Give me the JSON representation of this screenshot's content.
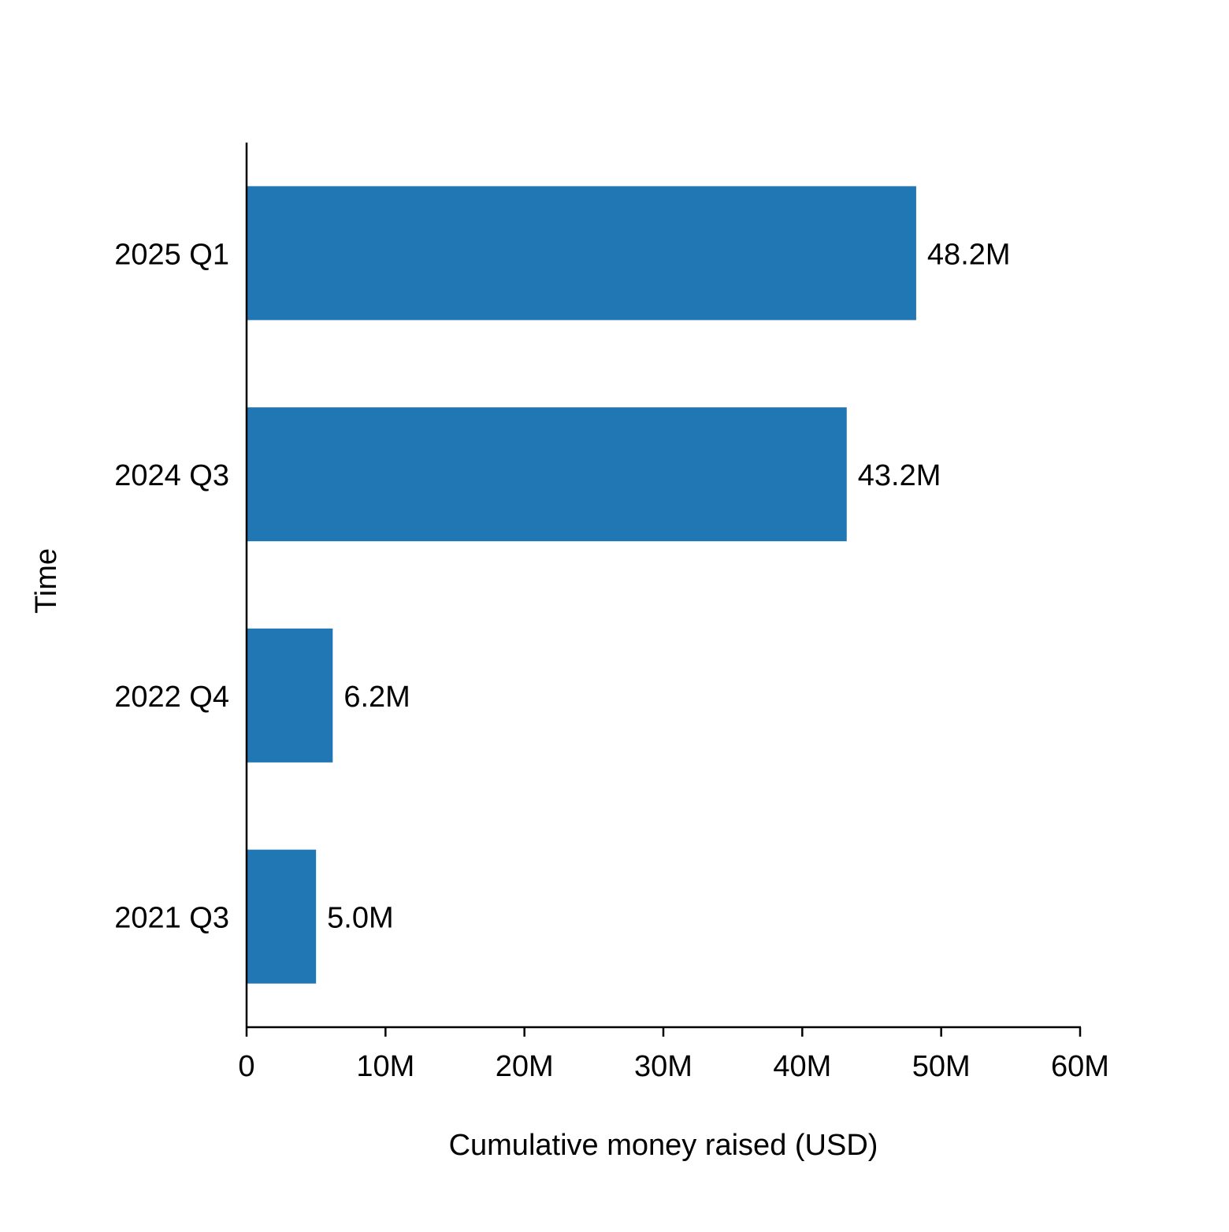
{
  "chart_data": {
    "type": "bar",
    "orientation": "horizontal",
    "categories": [
      "2025 Q1",
      "2024 Q3",
      "2022 Q4",
      "2021 Q3"
    ],
    "values": [
      48.2,
      43.2,
      6.2,
      5.0
    ],
    "value_labels": [
      "48.2M",
      "43.2M",
      "6.2M",
      "5.0M"
    ],
    "xlabel": "Cumulative money raised (USD)",
    "ylabel": "Time",
    "xlim": [
      0,
      60
    ],
    "x_ticks": [
      0,
      10,
      20,
      30,
      40,
      50,
      60
    ],
    "x_tick_labels": [
      "0",
      "10M",
      "20M",
      "30M",
      "40M",
      "50M",
      "60M"
    ],
    "grid": false,
    "bar_color": "#2077b4"
  }
}
